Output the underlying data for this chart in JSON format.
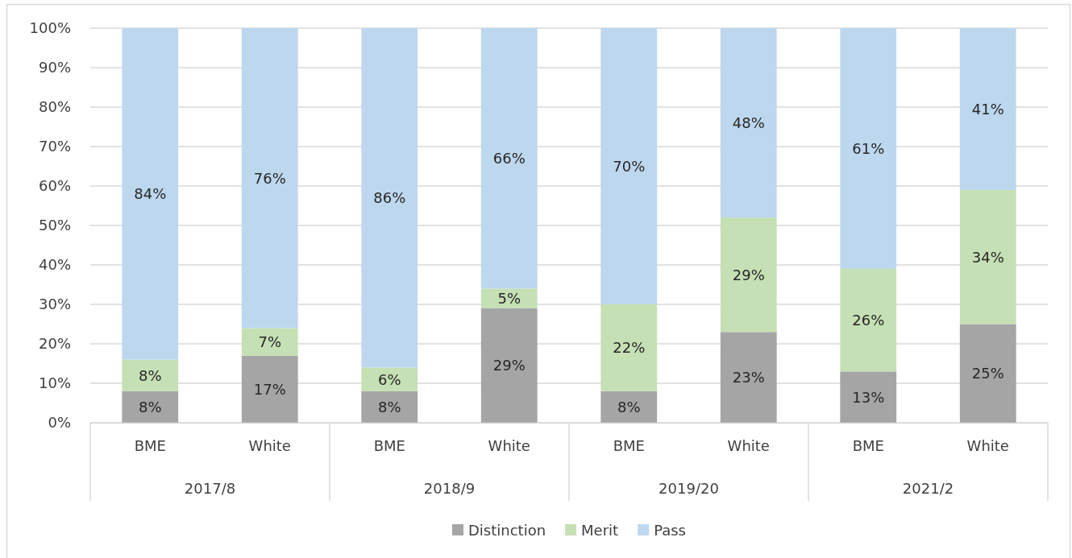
{
  "chart_data": {
    "type": "bar",
    "stacked": true,
    "categories": [
      "BME",
      "White",
      "BME",
      "White",
      "BME",
      "White",
      "BME",
      "White"
    ],
    "series": [
      {
        "name": "Distinction",
        "color": "#a5a5a5",
        "values": [
          8,
          17,
          8,
          29,
          8,
          23,
          13,
          25
        ],
        "value_labels": [
          "8%",
          "17%",
          "8%",
          "29%",
          "8%",
          "23%",
          "13%",
          "25%"
        ]
      },
      {
        "name": "Merit",
        "color": "#c5e0b4",
        "values": [
          8,
          7,
          6,
          5,
          22,
          29,
          26,
          34
        ],
        "value_labels": [
          "8%",
          "7%",
          "6%",
          "5%",
          "22%",
          "29%",
          "26%",
          "34%"
        ]
      },
      {
        "name": "Pass",
        "color": "#bdd7ee",
        "values": [
          84,
          76,
          86,
          66,
          70,
          48,
          61,
          41
        ],
        "value_labels": [
          "84%",
          "76%",
          "86%",
          "66%",
          "70%",
          "48%",
          "61%",
          "41%"
        ]
      }
    ],
    "ylim": [
      0,
      100
    ],
    "yticks": [
      {
        "value": 0,
        "label": "0%"
      },
      {
        "value": 10,
        "label": "10%"
      },
      {
        "value": 20,
        "label": "20%"
      },
      {
        "value": 30,
        "label": "30%"
      },
      {
        "value": 40,
        "label": "40%"
      },
      {
        "value": 50,
        "label": "50%"
      },
      {
        "value": 60,
        "label": "60%"
      },
      {
        "value": 70,
        "label": "70%"
      },
      {
        "value": 80,
        "label": "80%"
      },
      {
        "value": 90,
        "label": "90%"
      },
      {
        "value": 100,
        "label": "100%"
      }
    ],
    "grid": "y",
    "legend": "bottom",
    "annotations": [
      "2017/8",
      "2018/9",
      "2019/20",
      "2021/2"
    ]
  }
}
